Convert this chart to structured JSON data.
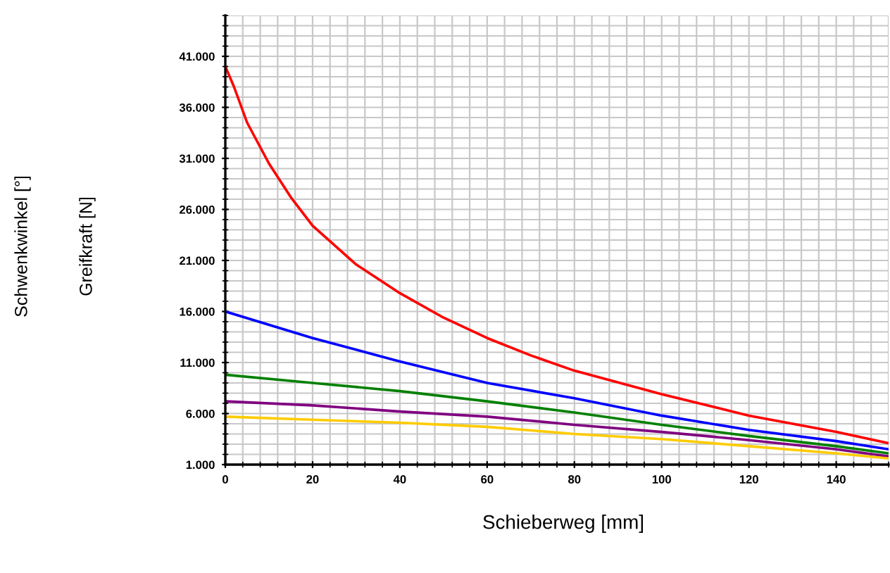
{
  "chart_data": {
    "type": "line",
    "xlabel": "Schieberweg [mm]",
    "ylabel": "Greifkraft [N]",
    "annotations": [
      "Schwenkwinkel [°]"
    ],
    "xlim": [
      0,
      152
    ],
    "xticks": [
      0,
      20,
      40,
      60,
      80,
      100,
      120,
      140
    ],
    "ylim": [
      1000,
      45000
    ],
    "yticks": [
      {
        "value": 1000,
        "label": "1.000"
      },
      {
        "value": 6000,
        "label": "6.000"
      },
      {
        "value": 11000,
        "label": "11.000"
      },
      {
        "value": 16000,
        "label": "16.000"
      },
      {
        "value": 21000,
        "label": "21.000"
      },
      {
        "value": 26000,
        "label": "26.000"
      },
      {
        "value": 31000,
        "label": "31.000"
      },
      {
        "value": 36000,
        "label": "36.000"
      },
      {
        "value": 41000,
        "label": "41.000"
      }
    ],
    "grid": true,
    "legend": false,
    "marker": "none",
    "line_style": "solid",
    "series": [
      {
        "color": "#ff0000",
        "x": [
          0,
          2,
          5,
          10,
          15,
          20,
          30,
          40,
          50,
          60,
          70,
          80,
          100,
          120,
          140,
          152
        ],
        "values": [
          40000,
          38000,
          34500,
          30500,
          27200,
          24400,
          20600,
          17800,
          15400,
          13400,
          11700,
          10200,
          7900,
          5800,
          4200,
          3100
        ]
      },
      {
        "color": "#0000ff",
        "x": [
          0,
          20,
          40,
          60,
          80,
          100,
          120,
          140,
          152
        ],
        "values": [
          16000,
          13400,
          11100,
          9000,
          7500,
          5800,
          4400,
          3300,
          2500
        ]
      },
      {
        "color": "#008000",
        "x": [
          0,
          20,
          40,
          60,
          80,
          100,
          120,
          140,
          152
        ],
        "values": [
          9800,
          9000,
          8200,
          7200,
          6100,
          4900,
          3800,
          2800,
          2100
        ]
      },
      {
        "color": "#800080",
        "x": [
          0,
          20,
          40,
          60,
          80,
          100,
          120,
          140,
          152
        ],
        "values": [
          7200,
          6800,
          6200,
          5700,
          4900,
          4200,
          3400,
          2500,
          1800
        ]
      },
      {
        "color": "#ffcc00",
        "x": [
          0,
          20,
          40,
          60,
          80,
          100,
          120,
          140,
          152
        ],
        "values": [
          5700,
          5400,
          5100,
          4700,
          4000,
          3500,
          2800,
          2100,
          1600
        ]
      }
    ]
  }
}
